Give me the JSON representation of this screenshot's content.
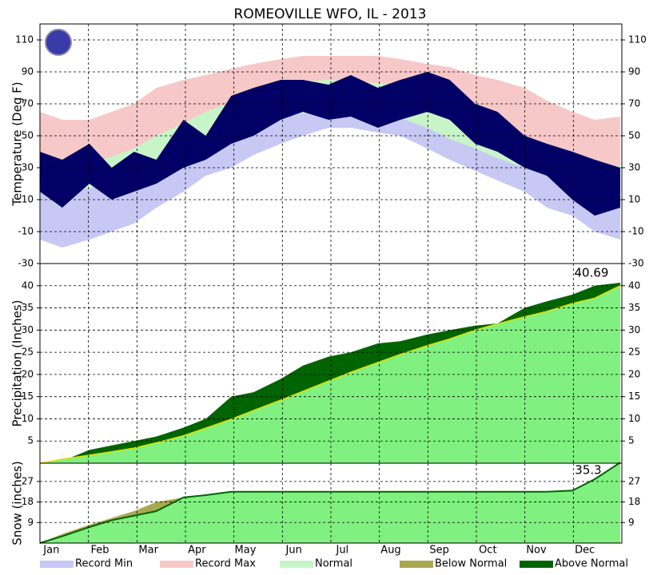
{
  "title": "ROMEOVILLE  WFO, IL - 2013",
  "x_axis": {
    "x": [
      1,
      15,
      32,
      46,
      60,
      74,
      91,
      105,
      121,
      135,
      152,
      166,
      182,
      196,
      213,
      227,
      244,
      258,
      274,
      288,
      305,
      319,
      335,
      349,
      365
    ],
    "xlim": [
      1,
      366
    ],
    "categories": [
      "Jan",
      "Feb",
      "Mar",
      "Apr",
      "May",
      "Jun",
      "Jul",
      "Aug",
      "Sep",
      "Oct",
      "Nov",
      "Dec"
    ]
  },
  "legend": [
    {
      "name": "Record Min",
      "color": "#c8c8f5"
    },
    {
      "name": "Record Max",
      "color": "#f7c8c8"
    },
    {
      "name": "Normal",
      "color": "#c8f5c8"
    },
    {
      "name": "Below Normal",
      "color": "#a8a850"
    },
    {
      "name": "Above Normal",
      "color": "#006400"
    }
  ],
  "chart_data": [
    {
      "type": "temperature",
      "ylabel": "Temperature (Deg F)",
      "ylim": [
        -30,
        120
      ],
      "yticks": [
        -30,
        -10,
        10,
        30,
        50,
        70,
        90,
        110
      ],
      "grid": true,
      "record_max": {
        "color": "#f7c8c8",
        "values": [
          65,
          60,
          60,
          65,
          70,
          80,
          85,
          88,
          92,
          95,
          98,
          100,
          100,
          100,
          100,
          98,
          95,
          93,
          88,
          85,
          80,
          72,
          65,
          60,
          62
        ]
      },
      "normal_high": {
        "color": "#c8f5c8",
        "values": [
          31,
          31,
          33,
          37,
          42,
          50,
          58,
          65,
          71,
          77,
          82,
          84,
          85,
          84,
          83,
          81,
          77,
          72,
          65,
          58,
          50,
          43,
          37,
          32,
          31
        ]
      },
      "normal_low": {
        "color": "#c8c8f5",
        "values": [
          16,
          16,
          17,
          20,
          25,
          31,
          38,
          44,
          50,
          56,
          61,
          64,
          66,
          65,
          64,
          61,
          55,
          48,
          42,
          36,
          30,
          26,
          20,
          16,
          16
        ]
      },
      "record_min": {
        "color": "#ffffff",
        "values": [
          -15,
          -20,
          -15,
          -10,
          -5,
          5,
          15,
          25,
          30,
          38,
          45,
          50,
          55,
          55,
          52,
          50,
          42,
          35,
          28,
          22,
          15,
          5,
          0,
          -10,
          -15
        ]
      },
      "observed": {
        "color": "#000066",
        "high": [
          40,
          35,
          45,
          30,
          40,
          35,
          60,
          50,
          75,
          80,
          85,
          85,
          82,
          88,
          80,
          85,
          90,
          85,
          70,
          65,
          50,
          45,
          40,
          35,
          30
        ],
        "low": [
          15,
          5,
          20,
          10,
          15,
          20,
          30,
          35,
          45,
          50,
          60,
          65,
          60,
          62,
          55,
          60,
          65,
          60,
          45,
          40,
          30,
          25,
          10,
          0,
          5
        ]
      }
    },
    {
      "type": "cumulative",
      "ylabel": "Precipitation (Inches)",
      "ylim": [
        0,
        45
      ],
      "yticks": [
        5,
        10,
        15,
        20,
        25,
        30,
        35,
        40
      ],
      "grid": true,
      "actual": {
        "color": "#006400",
        "values": [
          0,
          0.5,
          3,
          4,
          5,
          6,
          8,
          10,
          15,
          16,
          19,
          22,
          24,
          25,
          27,
          27.5,
          29,
          30,
          31,
          31.5,
          35,
          36.5,
          38,
          40,
          40.69
        ]
      },
      "normal": {
        "color": "#80f080",
        "line": "#e0e000",
        "values": [
          0,
          0.9,
          1.8,
          2.6,
          3.4,
          4.6,
          6.2,
          7.9,
          9.9,
          11.9,
          14.2,
          16.2,
          18.5,
          20.5,
          22.7,
          24.5,
          26.5,
          28,
          30,
          31.4,
          33,
          34.2,
          36,
          37.2,
          40
        ]
      },
      "annotation": "40.69"
    },
    {
      "type": "snow",
      "ylabel": "Snow (inches)",
      "ylim": [
        0,
        35
      ],
      "yticks": [
        9,
        18,
        27
      ],
      "grid": true,
      "normal": {
        "color": "#a8a850",
        "values": [
          0,
          4,
          8,
          11,
          14,
          18,
          20,
          21,
          22,
          22,
          22,
          22,
          22,
          22,
          22,
          22,
          22,
          22,
          22,
          22,
          22,
          22,
          23,
          27,
          32
        ]
      },
      "actual": {
        "color": "#80f080",
        "edge": "#006400",
        "values": [
          0,
          3,
          7,
          10,
          12,
          14,
          20,
          21,
          22.5,
          22.5,
          22.5,
          22.5,
          22.5,
          22.5,
          22.5,
          22.5,
          22.5,
          22.5,
          22.5,
          22.5,
          22.5,
          22.5,
          23,
          28,
          35.3
        ]
      },
      "annotation": "35.3"
    }
  ]
}
